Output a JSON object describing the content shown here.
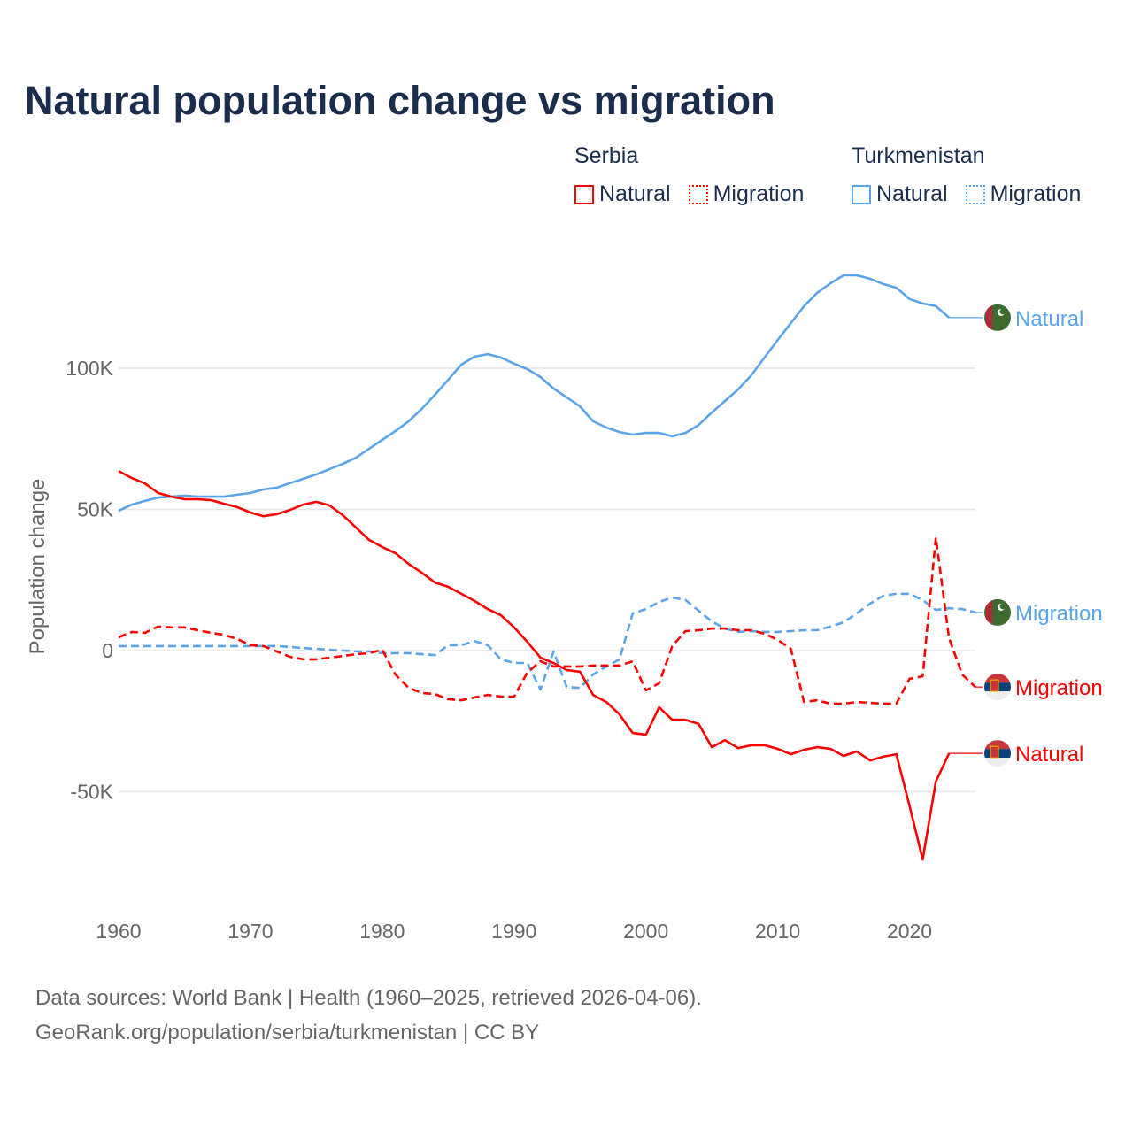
{
  "title": "Natural population change vs migration",
  "legend": {
    "groups": [
      {
        "name": "Serbia",
        "items": [
          {
            "label": "Natural",
            "style": "solid",
            "color": "#ff0000"
          },
          {
            "label": "Migration",
            "style": "dotted",
            "color": "#ff0000"
          }
        ]
      },
      {
        "name": "Turkmenistan",
        "items": [
          {
            "label": "Natural",
            "style": "solid",
            "color": "#5ba4ea"
          },
          {
            "label": "Migration",
            "style": "dotted",
            "color": "#5ba4ea"
          }
        ]
      }
    ]
  },
  "footer": {
    "line1": "Data sources: World Bank | Health (1960–2025, retrieved 2026-04-06).",
    "line2": "GeoRank.org/population/serbia/turkmenistan | CC BY"
  },
  "chart_data": {
    "type": "line",
    "title": "Natural population change vs migration",
    "xlabel": "",
    "ylabel": "Population change",
    "y_unit": "thousands",
    "xlim": [
      1960,
      2025
    ],
    "ylim": [
      -85,
      140
    ],
    "x_ticks": [
      1960,
      1970,
      1980,
      1990,
      2000,
      2010,
      2020
    ],
    "y_ticks": [
      {
        "value": 100,
        "label": "100K"
      },
      {
        "value": 50,
        "label": "50K"
      },
      {
        "value": 0,
        "label": "0"
      },
      {
        "value": -50,
        "label": "-50K"
      }
    ],
    "grid": true,
    "series": [
      {
        "name": "Turkmenistan Natural",
        "end_label": "Natural",
        "country": "Turkmenistan",
        "color": "#5ba4ea",
        "dash": false,
        "start_year": 1960,
        "values": [
          49.5,
          51.7,
          53.0,
          54.2,
          54.5,
          54.9,
          54.5,
          54.5,
          54.5,
          55.2,
          55.8,
          57.1,
          57.7,
          59.3,
          60.8,
          62.4,
          64.3,
          66.1,
          68.3,
          71.5,
          74.6,
          77.7,
          81.2,
          85.6,
          90.6,
          95.9,
          101.3,
          104.1,
          105.0,
          103.8,
          101.6,
          99.7,
          96.9,
          92.8,
          89.7,
          86.5,
          81.2,
          79.0,
          77.4,
          76.5,
          77.1,
          77.1,
          75.9,
          77.1,
          79.9,
          84.3,
          88.4,
          92.5,
          97.5,
          103.8,
          110.0,
          116.0,
          122.0,
          126.7,
          130.1,
          132.9,
          132.9,
          131.7,
          129.8,
          128.5,
          124.5,
          122.9,
          122.0,
          117.9
        ]
      },
      {
        "name": "Turkmenistan Migration",
        "end_label": "Migration",
        "country": "Turkmenistan",
        "color": "#5ba4ea",
        "dash": true,
        "start_year": 1960,
        "values": [
          1.6,
          1.6,
          1.6,
          1.6,
          1.6,
          1.6,
          1.6,
          1.6,
          1.6,
          1.6,
          1.6,
          1.6,
          1.6,
          1.3,
          0.9,
          0.6,
          0.3,
          0.0,
          -0.3,
          -0.3,
          -0.9,
          -0.9,
          -0.9,
          -1.3,
          -1.6,
          1.9,
          1.9,
          3.4,
          1.9,
          -3.1,
          -4.4,
          -4.4,
          -13.8,
          -0.3,
          -12.9,
          -13.2,
          -8.5,
          -5.6,
          -3.1,
          13.2,
          14.7,
          17.2,
          18.8,
          17.9,
          14.1,
          10.3,
          7.8,
          6.6,
          6.9,
          6.6,
          6.6,
          6.9,
          7.2,
          7.2,
          8.5,
          10.0,
          13.2,
          16.6,
          19.4,
          20.1,
          20.1,
          17.9,
          14.4,
          15.0,
          14.7,
          13.5
        ]
      },
      {
        "name": "Serbia Migration",
        "end_label": "Migration",
        "country": "Serbia",
        "color": "#ff0000",
        "dash": true,
        "start_year": 1960,
        "values": [
          4.7,
          6.6,
          6.3,
          8.5,
          8.2,
          8.2,
          7.2,
          6.3,
          5.6,
          4.1,
          1.9,
          1.6,
          -0.3,
          -2.2,
          -3.1,
          -3.1,
          -2.5,
          -1.9,
          -1.3,
          -0.9,
          0.3,
          -8.5,
          -13.2,
          -15.0,
          -15.4,
          -17.2,
          -17.6,
          -16.6,
          -15.7,
          -16.3,
          -16.3,
          -7.8,
          -3.8,
          -5.6,
          -5.6,
          -5.6,
          -5.3,
          -5.3,
          -5.3,
          -3.8,
          -14.1,
          -11.6,
          1.6,
          6.9,
          7.2,
          7.8,
          7.8,
          7.2,
          7.2,
          6.0,
          3.8,
          0.6,
          -18.2,
          -17.6,
          -18.8,
          -18.8,
          -18.2,
          -18.5,
          -18.8,
          -18.8,
          -10.0,
          -9.1,
          40.1,
          4.4,
          -8.5,
          -12.9
        ]
      },
      {
        "name": "Serbia Natural",
        "end_label": "Natural",
        "country": "Serbia",
        "color": "#ff0000",
        "dash": false,
        "start_year": 1960,
        "values": [
          63.6,
          61.1,
          59.2,
          55.8,
          54.5,
          53.6,
          53.6,
          53.3,
          52.0,
          50.8,
          48.9,
          47.6,
          48.3,
          49.8,
          51.7,
          52.7,
          51.4,
          48.0,
          43.6,
          39.2,
          36.7,
          34.5,
          30.7,
          27.6,
          24.1,
          22.6,
          20.1,
          17.6,
          14.7,
          12.5,
          8.2,
          3.1,
          -2.5,
          -4.4,
          -6.9,
          -7.5,
          -15.7,
          -18.2,
          -22.6,
          -29.2,
          -29.8,
          -20.1,
          -24.5,
          -24.5,
          -26.0,
          -34.2,
          -31.7,
          -34.5,
          -33.5,
          -33.5,
          -34.8,
          -36.7,
          -35.1,
          -34.2,
          -34.8,
          -37.3,
          -35.7,
          -38.9,
          -37.6,
          -36.7,
          -54.9,
          -74.0,
          -46.4,
          -36.4
        ]
      }
    ]
  }
}
